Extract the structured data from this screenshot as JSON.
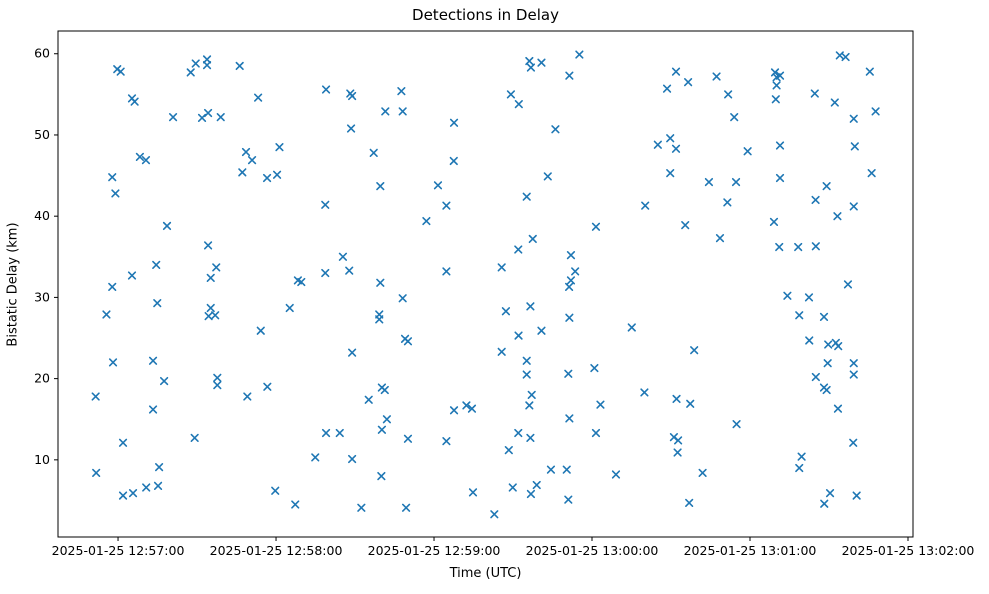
{
  "chart_data": {
    "type": "scatter",
    "title": "Detections in Delay",
    "xlabel": "Time (UTC)",
    "ylabel": "Bistatic Delay (km)",
    "marker": "x",
    "marker_color": "#1f77b4",
    "axis_color": "#000000",
    "background": "#ffffff",
    "grid": false,
    "legend": null,
    "x_unit": "seconds after 2025-01-25 12:56:00 UTC",
    "xlim": [
      37.2,
      361.9
    ],
    "ylim": [
      0.5,
      62.8
    ],
    "x_ticks": [
      {
        "value": 60,
        "label": "2025-01-25 12:57:00"
      },
      {
        "value": 120,
        "label": "2025-01-25 12:58:00"
      },
      {
        "value": 180,
        "label": "2025-01-25 12:59:00"
      },
      {
        "value": 240,
        "label": "2025-01-25 13:00:00"
      },
      {
        "value": 300,
        "label": "2025-01-25 13:01:00"
      },
      {
        "value": 360,
        "label": "2025-01-25 13:02:00"
      }
    ],
    "y_ticks": [
      10,
      20,
      30,
      40,
      50,
      60
    ],
    "points": [
      [
        59.7,
        58.1
      ],
      [
        61,
        57.8
      ],
      [
        87.6,
        57.7
      ],
      [
        89.5,
        58.8
      ],
      [
        93.8,
        59.3
      ],
      [
        93.8,
        58.6
      ],
      [
        106.2,
        58.5
      ],
      [
        65.3,
        54.5
      ],
      [
        66.3,
        54.1
      ],
      [
        113.2,
        54.6
      ],
      [
        80.9,
        52.2
      ],
      [
        91.9,
        52.1
      ],
      [
        94.2,
        52.7
      ],
      [
        99,
        52.2
      ],
      [
        139,
        55.6
      ],
      [
        148.2,
        55.1
      ],
      [
        148.9,
        54.8
      ],
      [
        167.6,
        55.4
      ],
      [
        161.5,
        52.9
      ],
      [
        168.1,
        52.9
      ],
      [
        187.6,
        51.5
      ],
      [
        148.5,
        50.8
      ],
      [
        121.3,
        48.5
      ],
      [
        157.1,
        47.8
      ],
      [
        235.2,
        59.9
      ],
      [
        216.2,
        59.1
      ],
      [
        216.8,
        58.3
      ],
      [
        220.8,
        58.9
      ],
      [
        231.4,
        57.3
      ],
      [
        271.9,
        57.8
      ],
      [
        276.5,
        56.5
      ],
      [
        268.5,
        55.7
      ],
      [
        209.2,
        55.0
      ],
      [
        212.2,
        53.8
      ],
      [
        226.1,
        50.7
      ],
      [
        265,
        48.8
      ],
      [
        269.7,
        49.6
      ],
      [
        271.9,
        48.3
      ],
      [
        334.1,
        59.8
      ],
      [
        336.3,
        59.6
      ],
      [
        345.5,
        57.8
      ],
      [
        287.3,
        57.2
      ],
      [
        309.5,
        57.7
      ],
      [
        311.4,
        57.3
      ],
      [
        310.1,
        57.1
      ],
      [
        310.1,
        56.1
      ],
      [
        291.7,
        55.0
      ],
      [
        309.8,
        54.4
      ],
      [
        324.6,
        55.1
      ],
      [
        332.2,
        54.0
      ],
      [
        294,
        52.2
      ],
      [
        347.7,
        52.9
      ],
      [
        339.4,
        52.0
      ],
      [
        311.4,
        48.7
      ],
      [
        299.1,
        48.0
      ],
      [
        339.8,
        48.6
      ],
      [
        68.3,
        47.3
      ],
      [
        70.6,
        46.9
      ],
      [
        108.6,
        47.9
      ],
      [
        110.9,
        46.9
      ],
      [
        57.8,
        44.8
      ],
      [
        116.6,
        44.7
      ],
      [
        107.2,
        45.4
      ],
      [
        59,
        42.8
      ],
      [
        78.6,
        38.8
      ],
      [
        94.2,
        36.4
      ],
      [
        74.5,
        34.0
      ],
      [
        65.3,
        32.7
      ],
      [
        97.3,
        33.7
      ],
      [
        95.2,
        32.4
      ],
      [
        187.5,
        46.8
      ],
      [
        120.4,
        45.1
      ],
      [
        159.6,
        43.7
      ],
      [
        181.5,
        43.8
      ],
      [
        138.7,
        41.4
      ],
      [
        184.7,
        41.3
      ],
      [
        177.1,
        39.4
      ],
      [
        145.4,
        35.0
      ],
      [
        147.8,
        33.3
      ],
      [
        138.7,
        33.0
      ],
      [
        128.3,
        32.1
      ],
      [
        129.6,
        31.9
      ],
      [
        184.7,
        33.2
      ],
      [
        223.2,
        44.9
      ],
      [
        269.7,
        45.3
      ],
      [
        215.2,
        42.4
      ],
      [
        260.2,
        41.3
      ],
      [
        241.5,
        38.7
      ],
      [
        275.4,
        38.9
      ],
      [
        217.5,
        37.2
      ],
      [
        212,
        35.9
      ],
      [
        205.7,
        33.7
      ],
      [
        232,
        35.2
      ],
      [
        284.4,
        44.2
      ],
      [
        294.7,
        44.2
      ],
      [
        311.4,
        44.7
      ],
      [
        346.2,
        45.3
      ],
      [
        329.1,
        43.7
      ],
      [
        291.4,
        41.7
      ],
      [
        324.9,
        42.0
      ],
      [
        339.4,
        41.2
      ],
      [
        333.2,
        40.0
      ],
      [
        309.1,
        39.3
      ],
      [
        288.6,
        37.3
      ],
      [
        311.1,
        36.2
      ],
      [
        318.3,
        36.2
      ],
      [
        325,
        36.3
      ],
      [
        57.8,
        31.3
      ],
      [
        74.9,
        29.3
      ],
      [
        55.6,
        27.9
      ],
      [
        95.2,
        28.7
      ],
      [
        94.4,
        27.7
      ],
      [
        96.9,
        27.8
      ],
      [
        114.2,
        25.9
      ],
      [
        58.1,
        22.0
      ],
      [
        73.3,
        22.2
      ],
      [
        77.5,
        19.7
      ],
      [
        97.7,
        20.1
      ],
      [
        97.7,
        19.2
      ],
      [
        116.7,
        19.0
      ],
      [
        109.1,
        17.8
      ],
      [
        51.5,
        17.8
      ],
      [
        159.6,
        31.8
      ],
      [
        168.1,
        29.9
      ],
      [
        125.2,
        28.7
      ],
      [
        159.2,
        27.9
      ],
      [
        159.2,
        27.3
      ],
      [
        169,
        24.9
      ],
      [
        170.1,
        24.6
      ],
      [
        148.9,
        23.2
      ],
      [
        160.2,
        18.9
      ],
      [
        161.3,
        18.6
      ],
      [
        155.2,
        17.4
      ],
      [
        233.6,
        33.2
      ],
      [
        232,
        32.1
      ],
      [
        231.3,
        31.3
      ],
      [
        207.3,
        28.3
      ],
      [
        216.6,
        28.9
      ],
      [
        231.4,
        27.5
      ],
      [
        255.1,
        26.3
      ],
      [
        220.8,
        25.9
      ],
      [
        212.1,
        25.3
      ],
      [
        205.7,
        23.3
      ],
      [
        278.8,
        23.5
      ],
      [
        215.2,
        22.2
      ],
      [
        240.9,
        21.3
      ],
      [
        215.2,
        20.5
      ],
      [
        231,
        20.6
      ],
      [
        217.1,
        18.0
      ],
      [
        216.2,
        16.7
      ],
      [
        243.2,
        16.8
      ],
      [
        259.9,
        18.3
      ],
      [
        272.1,
        17.5
      ],
      [
        277.3,
        16.9
      ],
      [
        337.2,
        31.6
      ],
      [
        314.2,
        30.2
      ],
      [
        322.4,
        30.0
      ],
      [
        318.7,
        27.8
      ],
      [
        328.1,
        27.6
      ],
      [
        322.5,
        24.7
      ],
      [
        329.7,
        24.2
      ],
      [
        332.6,
        24.4
      ],
      [
        333.5,
        24.0
      ],
      [
        329.5,
        21.9
      ],
      [
        339.4,
        21.9
      ],
      [
        339.4,
        20.5
      ],
      [
        325,
        20.2
      ],
      [
        328.1,
        18.9
      ],
      [
        329.1,
        18.6
      ],
      [
        73.3,
        16.2
      ],
      [
        61.9,
        12.1
      ],
      [
        89.1,
        12.7
      ],
      [
        51.7,
        8.4
      ],
      [
        75.6,
        9.1
      ],
      [
        70.7,
        6.6
      ],
      [
        75.2,
        6.8
      ],
      [
        61.9,
        5.6
      ],
      [
        65.7,
        5.9
      ],
      [
        187.6,
        16.1
      ],
      [
        192.3,
        16.7
      ],
      [
        194.4,
        16.3
      ],
      [
        162.1,
        15.0
      ],
      [
        160.2,
        13.7
      ],
      [
        139,
        13.3
      ],
      [
        144.2,
        13.3
      ],
      [
        170.1,
        12.6
      ],
      [
        184.7,
        12.3
      ],
      [
        134.9,
        10.3
      ],
      [
        148.9,
        10.1
      ],
      [
        160,
        8.0
      ],
      [
        119.7,
        6.2
      ],
      [
        127.3,
        4.5
      ],
      [
        152.4,
        4.1
      ],
      [
        169.4,
        4.1
      ],
      [
        194.8,
        6.0
      ],
      [
        231.4,
        15.1
      ],
      [
        212,
        13.3
      ],
      [
        216.6,
        12.7
      ],
      [
        208.4,
        11.2
      ],
      [
        241.5,
        13.3
      ],
      [
        271.1,
        12.8
      ],
      [
        272.7,
        12.4
      ],
      [
        272.5,
        10.9
      ],
      [
        224.4,
        8.8
      ],
      [
        230.4,
        8.8
      ],
      [
        249.1,
        8.2
      ],
      [
        209.9,
        6.6
      ],
      [
        219,
        6.9
      ],
      [
        216.8,
        5.8
      ],
      [
        231,
        5.1
      ],
      [
        202.9,
        3.3
      ],
      [
        276.9,
        4.7
      ],
      [
        333.4,
        16.3
      ],
      [
        294.9,
        14.4
      ],
      [
        339.2,
        12.1
      ],
      [
        319.6,
        10.4
      ],
      [
        318.7,
        9.0
      ],
      [
        282,
        8.4
      ],
      [
        330.4,
        5.9
      ],
      [
        340.5,
        5.6
      ],
      [
        328.2,
        4.6
      ]
    ]
  }
}
